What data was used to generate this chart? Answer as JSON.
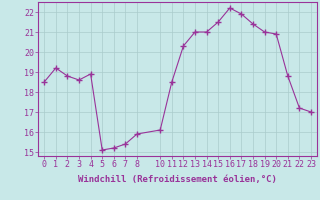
{
  "x": [
    0,
    1,
    2,
    3,
    4,
    5,
    6,
    7,
    8,
    10,
    11,
    12,
    13,
    14,
    15,
    16,
    17,
    18,
    19,
    20,
    21,
    22,
    23
  ],
  "y": [
    18.5,
    19.2,
    18.8,
    18.6,
    18.9,
    15.1,
    15.2,
    15.4,
    15.9,
    16.1,
    18.5,
    20.3,
    21.0,
    21.0,
    21.5,
    22.2,
    21.9,
    21.4,
    21.0,
    20.9,
    18.8,
    17.2,
    17.0
  ],
  "line_color": "#993399",
  "marker": "+",
  "marker_size": 4,
  "bg_color": "#c8e8e8",
  "grid_color": "#aacccc",
  "xlabel": "Windchill (Refroidissement éolien,°C)",
  "ylim": [
    14.8,
    22.5
  ],
  "xlim": [
    -0.5,
    23.5
  ],
  "yticks": [
    15,
    16,
    17,
    18,
    19,
    20,
    21,
    22
  ],
  "xticks": [
    0,
    1,
    2,
    3,
    4,
    5,
    6,
    7,
    8,
    10,
    11,
    12,
    13,
    14,
    15,
    16,
    17,
    18,
    19,
    20,
    21,
    22,
    23
  ],
  "xlabel_fontsize": 6.5,
  "tick_fontsize": 6,
  "label_color": "#993399",
  "spine_color": "#993399"
}
